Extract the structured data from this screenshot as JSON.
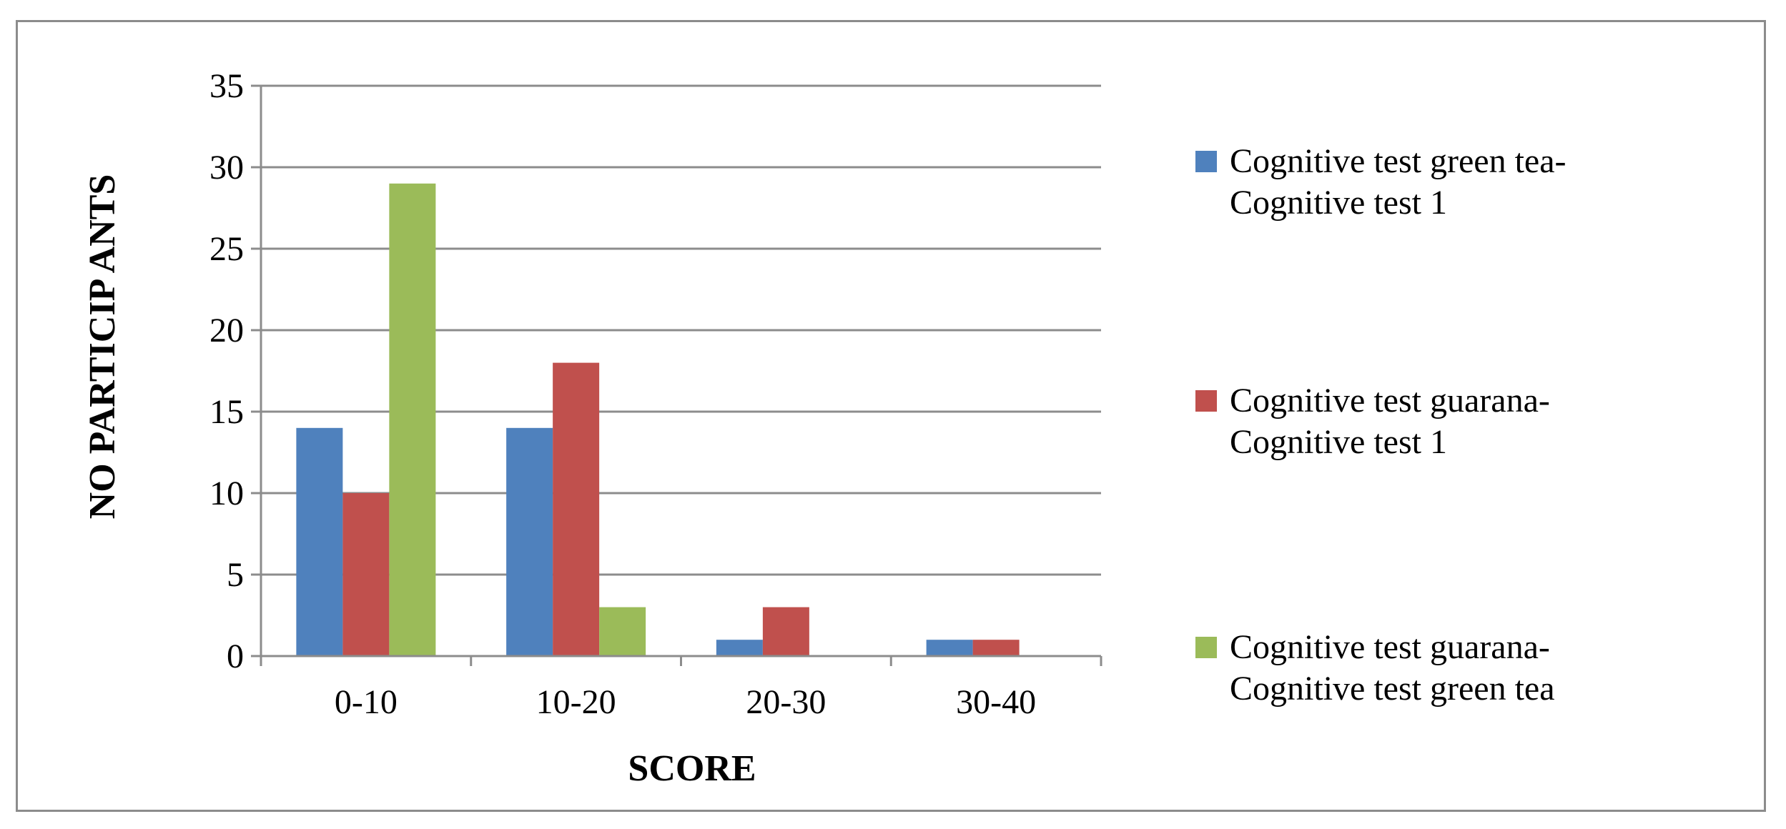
{
  "chart_data": {
    "type": "bar",
    "title": "",
    "xlabel": "SCORE",
    "ylabel": "NO PARTICIP ANTS",
    "ylim": [
      0,
      35
    ],
    "yticks": [
      0,
      5,
      10,
      15,
      20,
      25,
      30,
      35
    ],
    "categories": [
      "0-10",
      "10-20",
      "20-30",
      "30-40"
    ],
    "grid": true,
    "legend_position": "right",
    "series": [
      {
        "name": "Cognitive test green tea-Cognitive test 1",
        "legend_lines": [
          "Cognitive test green tea-",
          "Cognitive test 1"
        ],
        "color": "#4f81bd",
        "values": [
          14,
          14,
          1,
          1
        ]
      },
      {
        "name": "Cognitive test guarana-Cognitive test 1",
        "legend_lines": [
          "Cognitive test guarana-",
          "Cognitive test 1"
        ],
        "color": "#c0504d",
        "values": [
          10,
          18,
          3,
          1
        ]
      },
      {
        "name": "Cognitive test guarana-Cognitive test green tea",
        "legend_lines": [
          "Cognitive test guarana-",
          "Cognitive test green tea"
        ],
        "color": "#9bbb59",
        "values": [
          29,
          3,
          0,
          0
        ]
      }
    ]
  }
}
